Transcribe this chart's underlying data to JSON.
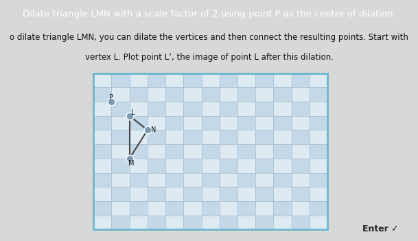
{
  "title_text": "Dilate triangle LMN with a scale factor of 2 using point P as the center of dilation.",
  "subtitle_line1": "o dilate triangle LMN, you can dilate the vertices and then connect the resulting points. Start with",
  "subtitle_line2": "vertex L. Plot point L’, the image of point L after this dilation.",
  "title_bg_color": "#6b3fa0",
  "title_text_color": "#ffffff",
  "page_bg_color": "#d8d8d8",
  "subtitle_text_color": "#111111",
  "outer_grid_bg": "#c8dce8",
  "inner_grid_bg_light": "#ddeaf2",
  "inner_grid_bg_dark": "#c5d8e8",
  "grid_line_color": "#a0bcd0",
  "grid_border_color": "#6ab8cc",
  "outer_border_color": "#aaaaaa",
  "grid_xlim": [
    0,
    13
  ],
  "grid_ylim": [
    0,
    11
  ],
  "P": [
    1,
    9
  ],
  "L": [
    2,
    8
  ],
  "N": [
    3,
    7
  ],
  "M": [
    2,
    5
  ],
  "point_color": "#7a9ab0",
  "point_edge_color": "#7a9ab0",
  "point_size": 60,
  "line_color": "#444444",
  "label_fontsize": 7,
  "subtitle_fontsize": 8.5,
  "title_fontsize": 9.5,
  "enter_bg_color": "#b0b0b0",
  "enter_text": "Enter ✓",
  "enter_text_color": "#222222"
}
